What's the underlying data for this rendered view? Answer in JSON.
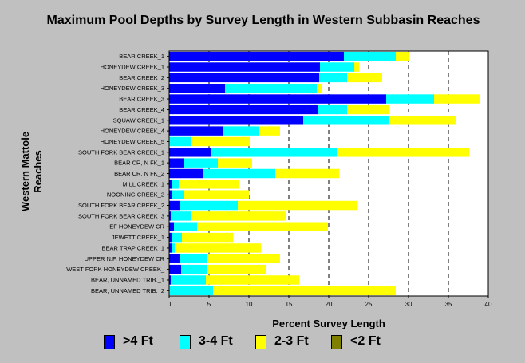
{
  "chart_data": {
    "type": "bar",
    "orientation": "horizontal",
    "stacked": true,
    "title": "Maximum Pool Depths by Survey Length in Western Subbasin Reaches",
    "xlabel": "Percent Survey Length",
    "ylabel": "Western Mattole\nReaches",
    "xlim": [
      0,
      40
    ],
    "xticks": [
      "0",
      "5",
      "10",
      "15",
      "20",
      "25",
      "30",
      "35",
      "40"
    ],
    "grid": "vertical dashed",
    "legend_position": "bottom",
    "categories": [
      "BEAR CREEK_1",
      "HONEYDEW CREEK_1",
      "BEAR CREEK_2",
      "HONEYDEW CREEK_3",
      "BEAR CREEK_3",
      "BEAR CREEK_4",
      "SQUAW CREEK_1",
      "HONEYDEW CREEK_4",
      "HONEYDEW CREEK_5",
      "SOUTH FORK BEAR CREEK_1",
      "BEAR CR, N FK_1",
      "BEAR CR, N FK_2",
      "MILL CREEK_1",
      "NOONING CREEK_2",
      "SOUTH FORK BEAR CREEK_2",
      "SOUTH FORK BEAR CREEK_3",
      "EF HONEYDEW CR",
      "JEWETT CREEK_1",
      "BEAR TRAP CREEK_1",
      "UPPER N.F. HONEYDEW CR",
      "WEST FORK HONEYDEW CREEK_",
      "BEAR, UNNAMED TRIB._1",
      "BEAR, UNNAMED TRIB._2"
    ],
    "series": [
      {
        "name": ">4 Ft",
        "color": "#0000ff",
        "values": [
          21.9,
          18.9,
          18.8,
          7.0,
          27.2,
          18.6,
          16.8,
          6.8,
          0,
          5.2,
          1.9,
          4.2,
          0.4,
          0.3,
          1.4,
          0.2,
          0.6,
          0.3,
          0.3,
          1.4,
          1.5,
          0.2,
          0
        ]
      },
      {
        "name": "3-4 Ft",
        "color": "#00ffff",
        "values": [
          6.5,
          4.3,
          3.5,
          11.5,
          6.0,
          3.7,
          10.8,
          4.5,
          2.7,
          15.9,
          4.2,
          9.1,
          0.8,
          1.5,
          7.2,
          2.5,
          2.9,
          1.3,
          0.4,
          3.3,
          3.3,
          4.4,
          5.5
        ]
      },
      {
        "name": "2-3 Ft",
        "color": "#ffff00",
        "values": [
          1.7,
          0.6,
          4.4,
          0.6,
          5.8,
          5.3,
          8.3,
          2.6,
          7.4,
          16.5,
          4.3,
          8.0,
          7.6,
          8.2,
          14.9,
          12.0,
          16.4,
          6.4,
          10.8,
          9.2,
          7.3,
          11.7,
          22.9
        ]
      },
      {
        "name": "<2 Ft",
        "color": "#808000",
        "values": [
          0,
          0,
          0,
          0,
          0,
          0,
          0,
          0,
          0,
          0,
          0,
          0,
          0,
          0,
          0,
          0,
          0,
          0,
          0,
          0,
          0,
          0,
          0
        ]
      }
    ]
  }
}
